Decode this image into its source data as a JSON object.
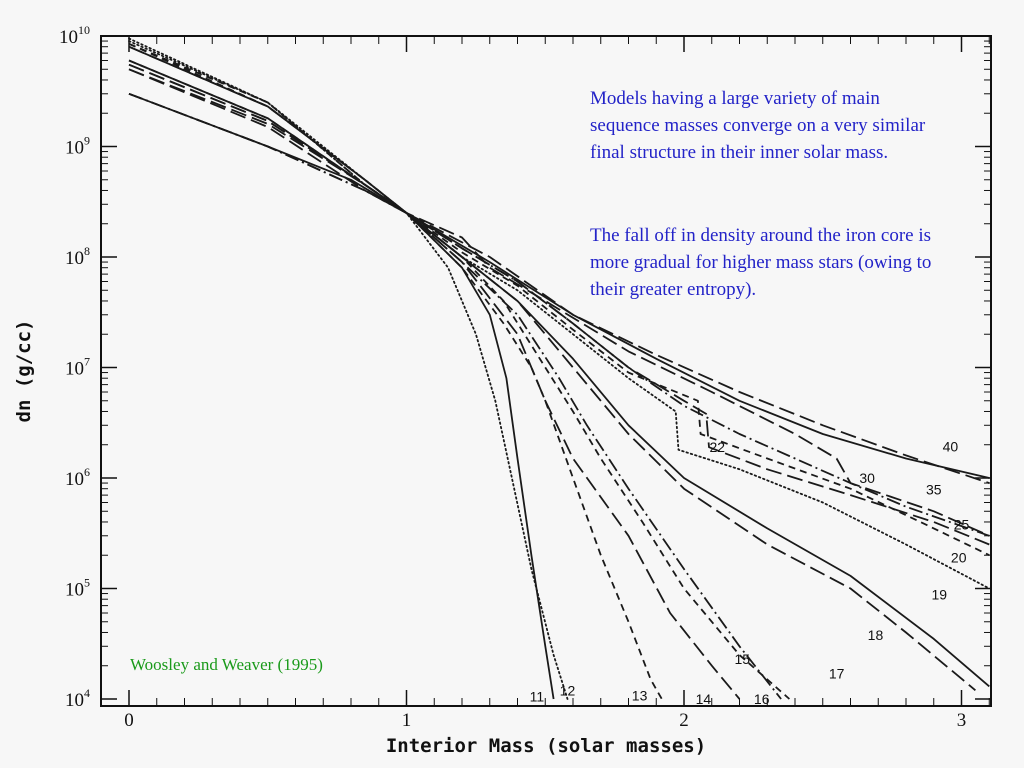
{
  "annotations": {
    "note1": "Models having a large variety of main sequence masses converge on a very similar final structure in their inner solar mass.",
    "note2": "The fall off in density around the iron core is more gradual for higher mass stars (owing to their greater entropy).",
    "citation": "Woosley and Weaver (1995)",
    "note_color": "#2323c8",
    "citation_color": "#1a9a1a"
  },
  "chart_data": {
    "type": "line",
    "xlabel": "Interior Mass (solar masses)",
    "ylabel": "dn (g/cc)",
    "xlim": [
      0,
      3.1
    ],
    "ylim": [
      10000,
      10000000000
    ],
    "y_scale": "log",
    "x_ticks": [
      "0",
      "1",
      "2",
      "3"
    ],
    "y_ticks": [
      {
        "base": "10",
        "exp": "4",
        "value": 10000
      },
      {
        "base": "10",
        "exp": "5",
        "value": 100000
      },
      {
        "base": "10",
        "exp": "6",
        "value": 1000000
      },
      {
        "base": "10",
        "exp": "7",
        "value": 10000000
      },
      {
        "base": "10",
        "exp": "8",
        "value": 100000000
      },
      {
        "base": "10",
        "exp": "9",
        "value": 1000000000
      },
      {
        "base": "10",
        "exp": "10",
        "value": 10000000000
      }
    ],
    "grid": false,
    "series": [
      {
        "name": "11",
        "dash": "solid",
        "label_at": [
          1.47,
          10500
        ],
        "points": [
          [
            0,
            3000000000.0
          ],
          [
            0.5,
            1000000000.0
          ],
          [
            0.8,
            500000000.0
          ],
          [
            1.0,
            250000000.0
          ],
          [
            1.2,
            80000000.0
          ],
          [
            1.3,
            30000000.0
          ],
          [
            1.36,
            8000000.0
          ],
          [
            1.4,
            1500000.0
          ],
          [
            1.45,
            200000.0
          ],
          [
            1.5,
            30000.0
          ],
          [
            1.53,
            10000.0
          ]
        ]
      },
      {
        "name": "12",
        "dash": "dot",
        "label_at": [
          1.58,
          12000
        ],
        "points": [
          [
            0,
            9500000000.0
          ],
          [
            0.5,
            2500000000.0
          ],
          [
            0.85,
            500000000.0
          ],
          [
            1.0,
            250000000.0
          ],
          [
            1.15,
            80000000.0
          ],
          [
            1.25,
            20000000.0
          ],
          [
            1.32,
            5000000.0
          ],
          [
            1.38,
            1000000.0
          ],
          [
            1.45,
            150000.0
          ],
          [
            1.53,
            25000.0
          ],
          [
            1.58,
            10000.0
          ]
        ]
      },
      {
        "name": "13",
        "dash": "short-dash",
        "label_at": [
          1.84,
          10800
        ],
        "points": [
          [
            0,
            8500000000.0
          ],
          [
            0.5,
            2300000000.0
          ],
          [
            0.85,
            500000000.0
          ],
          [
            1.0,
            250000000.0
          ],
          [
            1.2,
            80000000.0
          ],
          [
            1.35,
            25000000.0
          ],
          [
            1.45,
            10000000.0
          ],
          [
            1.5,
            5000000.0
          ],
          [
            1.6,
            1000000.0
          ],
          [
            1.7,
            200000.0
          ],
          [
            1.8,
            50000.0
          ],
          [
            1.88,
            15000.0
          ],
          [
            1.92,
            10000.0
          ]
        ]
      },
      {
        "name": "14",
        "dash": "long-dash",
        "label_at": [
          2.07,
          10000
        ],
        "points": [
          [
            0,
            5000000000.0
          ],
          [
            0.5,
            1500000000.0
          ],
          [
            0.85,
            400000000.0
          ],
          [
            1.0,
            250000000.0
          ],
          [
            1.2,
            90000000.0
          ],
          [
            1.4,
            20000000.0
          ],
          [
            1.5,
            5000000.0
          ],
          [
            1.6,
            1500000.0
          ],
          [
            1.8,
            300000.0
          ],
          [
            1.95,
            60000.0
          ],
          [
            2.1,
            20000.0
          ],
          [
            2.2,
            10000.0
          ]
        ]
      },
      {
        "name": "15",
        "dash": "dash-dot",
        "label_at": [
          2.21,
          23000
        ],
        "points": [
          [
            0,
            3000000000.0
          ],
          [
            0.5,
            1000000000.0
          ],
          [
            0.85,
            400000000.0
          ],
          [
            1.0,
            250000000.0
          ],
          [
            1.2,
            90000000.0
          ],
          [
            1.4,
            30000000.0
          ],
          [
            1.55,
            8000000.0
          ],
          [
            1.65,
            3000000.0
          ],
          [
            1.8,
            800000.0
          ],
          [
            2.0,
            150000.0
          ],
          [
            2.2,
            30000.0
          ],
          [
            2.35,
            10000.0
          ]
        ]
      },
      {
        "name": "16",
        "dash": "short-dash",
        "label_at": [
          2.28,
          10000
        ],
        "points": [
          [
            0,
            6000000000.0
          ],
          [
            0.5,
            1800000000.0
          ],
          [
            0.85,
            450000000.0
          ],
          [
            1.0,
            250000000.0
          ],
          [
            1.2,
            100000000.0
          ],
          [
            1.35,
            40000000.0
          ],
          [
            1.5,
            10000000.0
          ],
          [
            1.6,
            4000000.0
          ],
          [
            1.7,
            1500000.0
          ],
          [
            1.85,
            400000.0
          ],
          [
            2.0,
            100000.0
          ],
          [
            2.2,
            25000.0
          ],
          [
            2.38,
            10000.0
          ]
        ]
      },
      {
        "name": "17",
        "dash": "long-dash",
        "label_at": [
          2.55,
          17000
        ],
        "points": [
          [
            0,
            5500000000.0
          ],
          [
            0.5,
            1700000000.0
          ],
          [
            0.85,
            450000000.0
          ],
          [
            1.0,
            250000000.0
          ],
          [
            1.2,
            100000000.0
          ],
          [
            1.4,
            40000000.0
          ],
          [
            1.6,
            10000000.0
          ],
          [
            1.8,
            2500000.0
          ],
          [
            2.0,
            800000.0
          ],
          [
            2.3,
            250000.0
          ],
          [
            2.6,
            100000.0
          ],
          [
            2.8,
            40000.0
          ],
          [
            3.05,
            12000.0
          ]
        ]
      },
      {
        "name": "18",
        "dash": "solid",
        "label_at": [
          2.69,
          38000
        ],
        "points": [
          [
            0,
            6000000000.0
          ],
          [
            0.5,
            1800000000.0
          ],
          [
            0.85,
            450000000.0
          ],
          [
            1.0,
            250000000.0
          ],
          [
            1.2,
            100000000.0
          ],
          [
            1.4,
            40000000.0
          ],
          [
            1.6,
            12000000.0
          ],
          [
            1.8,
            3000000.0
          ],
          [
            2.0,
            1000000.0
          ],
          [
            2.3,
            350000.0
          ],
          [
            2.6,
            130000.0
          ],
          [
            2.9,
            35000.0
          ],
          [
            3.1,
            13000.0
          ]
        ]
      },
      {
        "name": "19",
        "dash": "dot",
        "label_at": [
          2.92,
          88000
        ],
        "points": [
          [
            0,
            9000000000.0
          ],
          [
            0.5,
            2500000000.0
          ],
          [
            0.85,
            450000000.0
          ],
          [
            1.0,
            250000000.0
          ],
          [
            1.2,
            100000000.0
          ],
          [
            1.4,
            50000000.0
          ],
          [
            1.6,
            20000000.0
          ],
          [
            1.8,
            8000000.0
          ],
          [
            1.97,
            4000000.0
          ],
          [
            1.98,
            1800000.0
          ],
          [
            2.2,
            1200000.0
          ],
          [
            2.5,
            600000.0
          ],
          [
            2.8,
            250000.0
          ],
          [
            3.1,
            100000.0
          ]
        ]
      },
      {
        "name": "20",
        "dash": "short-dash",
        "label_at": [
          2.99,
          190000
        ],
        "points": [
          [
            0,
            8500000000.0
          ],
          [
            0.5,
            2500000000.0
          ],
          [
            0.85,
            450000000.0
          ],
          [
            1.0,
            250000000.0
          ],
          [
            1.2,
            110000000.0
          ],
          [
            1.4,
            55000000.0
          ],
          [
            1.6,
            22000000.0
          ],
          [
            1.8,
            9000000.0
          ],
          [
            2.05,
            5000000.0
          ],
          [
            2.06,
            2500000.0
          ],
          [
            2.3,
            1500000.0
          ],
          [
            2.6,
            800000.0
          ],
          [
            2.9,
            350000.0
          ],
          [
            3.1,
            200000.0
          ]
        ]
      },
      {
        "name": "22",
        "dash": "long-dash",
        "label_at": [
          2.12,
          1900000
        ],
        "points": [
          [
            0,
            5000000000.0
          ],
          [
            0.5,
            1600000000.0
          ],
          [
            0.85,
            450000000.0
          ],
          [
            1.0,
            250000000.0
          ],
          [
            1.2,
            120000000.0
          ],
          [
            1.4,
            60000000.0
          ],
          [
            1.6,
            25000000.0
          ],
          [
            1.8,
            10000000.0
          ],
          [
            2.0,
            5000000.0
          ],
          [
            2.08,
            3800000.0
          ],
          [
            2.09,
            1900000.0
          ],
          [
            2.3,
            1200000.0
          ],
          [
            2.6,
            700000.0
          ],
          [
            2.9,
            400000.0
          ],
          [
            3.1,
            250000.0
          ]
        ]
      },
      {
        "name": "25",
        "dash": "dash-dot",
        "label_at": [
          3.0,
          380000
        ],
        "points": [
          [
            0,
            3000000000.0
          ],
          [
            0.5,
            1000000000.0
          ],
          [
            0.85,
            400000000.0
          ],
          [
            1.0,
            250000000.0
          ],
          [
            1.2,
            120000000.0
          ],
          [
            1.4,
            60000000.0
          ],
          [
            1.6,
            25000000.0
          ],
          [
            1.8,
            10000000.0
          ],
          [
            2.0,
            4500000.0
          ],
          [
            2.2,
            2500000.0
          ],
          [
            2.4,
            1500000.0
          ],
          [
            2.6,
            900000.0
          ],
          [
            2.8,
            550000.0
          ],
          [
            3.1,
            300000.0
          ]
        ]
      },
      {
        "name": "30",
        "dash": "long-dash",
        "label_at": [
          2.66,
          1000000
        ],
        "points": [
          [
            0,
            5500000000.0
          ],
          [
            0.5,
            1700000000.0
          ],
          [
            0.85,
            450000000.0
          ],
          [
            1.0,
            250000000.0
          ],
          [
            1.2,
            150000000.0
          ],
          [
            1.3,
            80000000.0
          ],
          [
            1.5,
            40000000.0
          ],
          [
            1.8,
            14000000.0
          ],
          [
            2.1,
            6000000.0
          ],
          [
            2.4,
            2500000.0
          ],
          [
            2.55,
            1500000.0
          ],
          [
            2.6,
            900000.0
          ],
          [
            2.9,
            500000.0
          ],
          [
            3.1,
            300000.0
          ]
        ]
      },
      {
        "name": "35",
        "dash": "long-dash",
        "label_at": [
          2.9,
          790000
        ],
        "points": [
          [
            0,
            8000000000.0
          ],
          [
            0.5,
            2300000000.0
          ],
          [
            0.85,
            500000000.0
          ],
          [
            1.0,
            250000000.0
          ],
          [
            1.3,
            100000000.0
          ],
          [
            1.6,
            30000000.0
          ],
          [
            1.9,
            13000000.0
          ],
          [
            2.2,
            6000000.0
          ],
          [
            2.5,
            3000000.0
          ],
          [
            2.8,
            1600000.0
          ],
          [
            3.1,
            900000.0
          ]
        ]
      },
      {
        "name": "40",
        "dash": "solid",
        "label_at": [
          2.96,
          1920000
        ],
        "points": [
          [
            0,
            8000000000.0
          ],
          [
            0.5,
            2300000000.0
          ],
          [
            0.85,
            500000000.0
          ],
          [
            1.0,
            250000000.0
          ],
          [
            1.3,
            90000000.0
          ],
          [
            1.6,
            30000000.0
          ],
          [
            1.9,
            12000000.0
          ],
          [
            2.2,
            5000000.0
          ],
          [
            2.5,
            2500000.0
          ],
          [
            2.8,
            1500000.0
          ],
          [
            3.1,
            1000000.0
          ]
        ]
      }
    ]
  }
}
